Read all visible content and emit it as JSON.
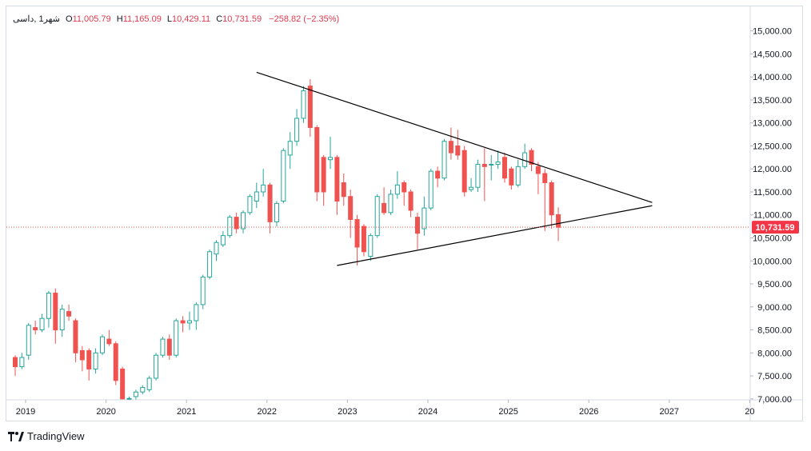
{
  "header": {
    "symbol": "شهر1 ,داسی",
    "open_label": "O",
    "open": "11,005.79",
    "high_label": "H",
    "high": "11,165.09",
    "low_label": "L",
    "low": "10,429.11",
    "close_label": "C",
    "close": "10,731.59",
    "change": "−258.82 (−2.35%)"
  },
  "price_tag": "10,731.59",
  "brand": "TradingView",
  "colors": {
    "up": "#26a69a",
    "down": "#ef5350",
    "up_fill": "#ffffff",
    "price_line": "#ef5350",
    "trendline": "#000000"
  },
  "chart_data": {
    "type": "candlestick",
    "interval": "monthly",
    "x_labels": [
      "2019",
      "2020",
      "2021",
      "2022",
      "2023",
      "2024",
      "2025",
      "2026",
      "2027",
      "20"
    ],
    "y_ticks": [
      "15,000.00",
      "14,500.00",
      "14,000.00",
      "13,500.00",
      "13,000.00",
      "12,500.00",
      "12,000.00",
      "11,500.00",
      "11,000.00",
      "10,500.00",
      "10,000.00",
      "9,500.00",
      "9,000.00",
      "8,500.00",
      "8,000.00",
      "7,500.00",
      "7,000.00"
    ],
    "y_tick_values": [
      15000,
      14500,
      14000,
      13500,
      13000,
      12500,
      12000,
      11500,
      11000,
      10500,
      10000,
      9500,
      9000,
      8500,
      8000,
      7500,
      7000
    ],
    "ylim": [
      6980,
      15150
    ],
    "last_price": 10731.59,
    "candles": [
      {
        "t": "2019-01",
        "o": 7900,
        "h": 7950,
        "l": 7500,
        "c": 7700
      },
      {
        "t": "2019-02",
        "o": 7700,
        "h": 8000,
        "l": 7650,
        "c": 7900
      },
      {
        "t": "2019-03",
        "o": 7950,
        "h": 8650,
        "l": 7850,
        "c": 8600
      },
      {
        "t": "2019-04",
        "o": 8550,
        "h": 8700,
        "l": 8400,
        "c": 8500
      },
      {
        "t": "2019-05",
        "o": 8500,
        "h": 8850,
        "l": 8450,
        "c": 8750
      },
      {
        "t": "2019-06",
        "o": 8750,
        "h": 9350,
        "l": 8550,
        "c": 9300
      },
      {
        "t": "2019-07",
        "o": 9300,
        "h": 9400,
        "l": 8200,
        "c": 8500
      },
      {
        "t": "2019-08",
        "o": 8500,
        "h": 9050,
        "l": 8350,
        "c": 8950
      },
      {
        "t": "2019-09",
        "o": 8900,
        "h": 9050,
        "l": 8700,
        "c": 8800
      },
      {
        "t": "2019-10",
        "o": 8700,
        "h": 8750,
        "l": 7800,
        "c": 8000
      },
      {
        "t": "2019-11",
        "o": 8050,
        "h": 8150,
        "l": 7600,
        "c": 7850
      },
      {
        "t": "2019-12",
        "o": 8050,
        "h": 8100,
        "l": 7400,
        "c": 7650
      },
      {
        "t": "2020-01",
        "o": 7650,
        "h": 8100,
        "l": 7550,
        "c": 8000
      },
      {
        "t": "2020-02",
        "o": 8000,
        "h": 8400,
        "l": 7950,
        "c": 8350
      },
      {
        "t": "2020-03",
        "o": 8300,
        "h": 8500,
        "l": 8150,
        "c": 8200
      },
      {
        "t": "2020-04",
        "o": 8200,
        "h": 8250,
        "l": 7300,
        "c": 7400
      },
      {
        "t": "2020-05",
        "o": 7650,
        "h": 7700,
        "l": 6990,
        "c": 7000
      },
      {
        "t": "2020-06",
        "o": 6995,
        "h": 7050,
        "l": 6990,
        "c": 7010
      },
      {
        "t": "2020-07",
        "o": 7050,
        "h": 7200,
        "l": 6990,
        "c": 7150
      },
      {
        "t": "2020-08",
        "o": 7150,
        "h": 7300,
        "l": 7100,
        "c": 7250
      },
      {
        "t": "2020-09",
        "o": 7200,
        "h": 7500,
        "l": 7150,
        "c": 7450
      },
      {
        "t": "2020-10",
        "o": 7450,
        "h": 8000,
        "l": 7400,
        "c": 7950
      },
      {
        "t": "2020-11",
        "o": 7950,
        "h": 8350,
        "l": 7900,
        "c": 8300
      },
      {
        "t": "2020-12",
        "o": 8300,
        "h": 8400,
        "l": 7850,
        "c": 7950
      },
      {
        "t": "2021-01",
        "o": 7950,
        "h": 8750,
        "l": 7900,
        "c": 8700
      },
      {
        "t": "2021-02",
        "o": 8700,
        "h": 8800,
        "l": 8450,
        "c": 8650
      },
      {
        "t": "2021-03",
        "o": 8650,
        "h": 8900,
        "l": 8500,
        "c": 8700
      },
      {
        "t": "2021-04",
        "o": 8700,
        "h": 9100,
        "l": 8500,
        "c": 9050
      },
      {
        "t": "2021-05",
        "o": 9050,
        "h": 9700,
        "l": 8950,
        "c": 9650
      },
      {
        "t": "2021-06",
        "o": 9650,
        "h": 10250,
        "l": 9600,
        "c": 10200
      },
      {
        "t": "2021-07",
        "o": 10150,
        "h": 10450,
        "l": 10000,
        "c": 10400
      },
      {
        "t": "2021-08",
        "o": 10350,
        "h": 10650,
        "l": 10300,
        "c": 10550
      },
      {
        "t": "2021-09",
        "o": 10550,
        "h": 11000,
        "l": 10500,
        "c": 10950
      },
      {
        "t": "2021-10",
        "o": 10950,
        "h": 11050,
        "l": 10600,
        "c": 10700
      },
      {
        "t": "2021-11",
        "o": 10700,
        "h": 11100,
        "l": 10600,
        "c": 11050
      },
      {
        "t": "2021-12",
        "o": 11050,
        "h": 11450,
        "l": 11000,
        "c": 11400
      },
      {
        "t": "2022-01",
        "o": 11300,
        "h": 11700,
        "l": 11150,
        "c": 11500
      },
      {
        "t": "2022-02",
        "o": 11500,
        "h": 12000,
        "l": 11400,
        "c": 11650
      },
      {
        "t": "2022-03",
        "o": 11650,
        "h": 11700,
        "l": 10600,
        "c": 10850
      },
      {
        "t": "2022-04",
        "o": 10850,
        "h": 11300,
        "l": 10750,
        "c": 11250
      },
      {
        "t": "2022-05",
        "o": 11300,
        "h": 12450,
        "l": 11250,
        "c": 12400
      },
      {
        "t": "2022-06",
        "o": 12300,
        "h": 12800,
        "l": 12000,
        "c": 12600
      },
      {
        "t": "2022-07",
        "o": 12600,
        "h": 13300,
        "l": 12500,
        "c": 13100
      },
      {
        "t": "2022-08",
        "o": 13100,
        "h": 13800,
        "l": 13000,
        "c": 13700
      },
      {
        "t": "2022-09",
        "o": 13800,
        "h": 13950,
        "l": 12700,
        "c": 12900
      },
      {
        "t": "2022-10",
        "o": 12900,
        "h": 12950,
        "l": 11300,
        "c": 11500
      },
      {
        "t": "2022-11",
        "o": 12250,
        "h": 12300,
        "l": 11200,
        "c": 11500
      },
      {
        "t": "2022-12",
        "o": 12200,
        "h": 12700,
        "l": 12000,
        "c": 12250
      },
      {
        "t": "2023-01",
        "o": 12250,
        "h": 12300,
        "l": 11000,
        "c": 11300
      },
      {
        "t": "2023-02",
        "o": 11700,
        "h": 11900,
        "l": 11200,
        "c": 11400
      },
      {
        "t": "2023-03",
        "o": 11400,
        "h": 11550,
        "l": 10500,
        "c": 10900
      },
      {
        "t": "2023-04",
        "o": 10900,
        "h": 11000,
        "l": 9900,
        "c": 10300
      },
      {
        "t": "2023-05",
        "o": 10750,
        "h": 10800,
        "l": 10100,
        "c": 10200
      },
      {
        "t": "2023-06",
        "o": 10100,
        "h": 10600,
        "l": 10000,
        "c": 10550
      },
      {
        "t": "2023-07",
        "o": 10550,
        "h": 11450,
        "l": 10500,
        "c": 11400
      },
      {
        "t": "2023-08",
        "o": 11250,
        "h": 11600,
        "l": 11000,
        "c": 11050
      },
      {
        "t": "2023-09",
        "o": 11050,
        "h": 11550,
        "l": 11000,
        "c": 11450
      },
      {
        "t": "2023-10",
        "o": 11450,
        "h": 11950,
        "l": 11350,
        "c": 11650
      },
      {
        "t": "2023-11",
        "o": 11700,
        "h": 11750,
        "l": 11200,
        "c": 11500
      },
      {
        "t": "2023-12",
        "o": 11500,
        "h": 11550,
        "l": 10950,
        "c": 11100
      },
      {
        "t": "2024-01",
        "o": 10950,
        "h": 11050,
        "l": 10250,
        "c": 10600
      },
      {
        "t": "2024-02",
        "o": 10700,
        "h": 11400,
        "l": 10550,
        "c": 11150
      },
      {
        "t": "2024-03",
        "o": 11150,
        "h": 12000,
        "l": 11100,
        "c": 11950
      },
      {
        "t": "2024-04",
        "o": 11950,
        "h": 12050,
        "l": 11600,
        "c": 11800
      },
      {
        "t": "2024-05",
        "o": 11800,
        "h": 12650,
        "l": 11750,
        "c": 12600
      },
      {
        "t": "2024-06",
        "o": 12600,
        "h": 12900,
        "l": 12200,
        "c": 12350
      },
      {
        "t": "2024-07",
        "o": 12500,
        "h": 12850,
        "l": 12200,
        "c": 12300
      },
      {
        "t": "2024-08",
        "o": 12400,
        "h": 12500,
        "l": 11400,
        "c": 11500
      },
      {
        "t": "2024-09",
        "o": 11550,
        "h": 11800,
        "l": 11500,
        "c": 11600
      },
      {
        "t": "2024-10",
        "o": 11600,
        "h": 12200,
        "l": 11500,
        "c": 12100
      },
      {
        "t": "2024-11",
        "o": 12100,
        "h": 12450,
        "l": 11300,
        "c": 12050
      },
      {
        "t": "2024-12",
        "o": 12100,
        "h": 12300,
        "l": 11750,
        "c": 12100
      },
      {
        "t": "2025-01",
        "o": 12100,
        "h": 12400,
        "l": 12000,
        "c": 12150
      },
      {
        "t": "2025-02",
        "o": 12250,
        "h": 12350,
        "l": 11700,
        "c": 11800
      },
      {
        "t": "2025-03",
        "o": 12000,
        "h": 12050,
        "l": 11550,
        "c": 11650
      },
      {
        "t": "2025-04",
        "o": 11650,
        "h": 12200,
        "l": 11600,
        "c": 12050
      },
      {
        "t": "2025-05",
        "o": 12050,
        "h": 12550,
        "l": 12000,
        "c": 12350
      },
      {
        "t": "2025-06",
        "o": 12400,
        "h": 12450,
        "l": 11950,
        "c": 12100
      },
      {
        "t": "2025-07",
        "o": 12050,
        "h": 12150,
        "l": 11450,
        "c": 11900
      },
      {
        "t": "2025-08",
        "o": 11900,
        "h": 12000,
        "l": 10650,
        "c": 11700
      },
      {
        "t": "2025-09",
        "o": 11700,
        "h": 11750,
        "l": 10700,
        "c": 11000
      },
      {
        "t": "2025-10",
        "o": 11006,
        "h": 11165,
        "l": 10429,
        "c": 10732
      }
    ],
    "trendlines": [
      {
        "from": {
          "t": "2022-01",
          "v": 14100
        },
        "to": {
          "t": "2026-12",
          "v": 11270
        }
      },
      {
        "from": {
          "t": "2023-01",
          "v": 9900
        },
        "to": {
          "t": "2026-12",
          "v": 11200
        }
      }
    ]
  }
}
